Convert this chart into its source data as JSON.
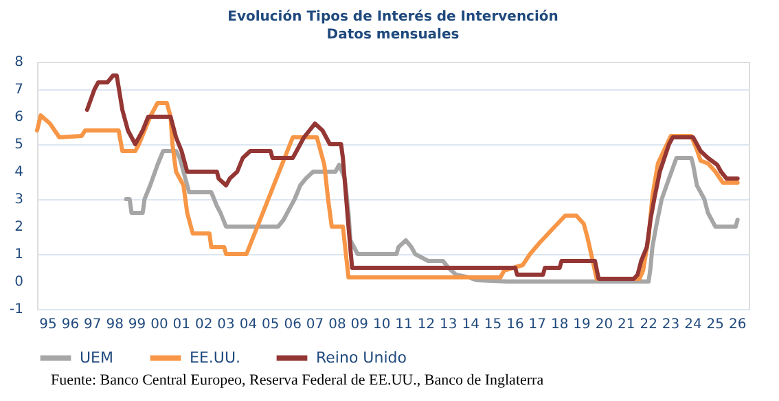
{
  "chart_data": {
    "type": "line",
    "title": "Evolución Tipos de Interés de Intervención",
    "subtitle": "Datos mensuales",
    "xlim": [
      "1995-01",
      "2027-01"
    ],
    "ylim": [
      -1,
      8
    ],
    "yticks": [
      -1,
      0,
      1,
      2,
      3,
      4,
      5,
      6,
      7,
      8
    ],
    "xticks": [
      {
        "value": "1995-07",
        "label": "95"
      },
      {
        "value": "1996-07",
        "label": "96"
      },
      {
        "value": "1997-07",
        "label": "97"
      },
      {
        "value": "1998-07",
        "label": "98"
      },
      {
        "value": "1999-07",
        "label": "99"
      },
      {
        "value": "2000-07",
        "label": "00"
      },
      {
        "value": "2001-07",
        "label": "01"
      },
      {
        "value": "2002-07",
        "label": "02"
      },
      {
        "value": "2003-07",
        "label": "03"
      },
      {
        "value": "2004-07",
        "label": "04"
      },
      {
        "value": "2005-07",
        "label": "05"
      },
      {
        "value": "2006-07",
        "label": "06"
      },
      {
        "value": "2007-07",
        "label": "07"
      },
      {
        "value": "2008-07",
        "label": "08"
      },
      {
        "value": "2009-07",
        "label": "09"
      },
      {
        "value": "2010-07",
        "label": "10"
      },
      {
        "value": "2011-07",
        "label": "11"
      },
      {
        "value": "2012-07",
        "label": "12"
      },
      {
        "value": "2013-07",
        "label": "13"
      },
      {
        "value": "2014-07",
        "label": "14"
      },
      {
        "value": "2015-07",
        "label": "15"
      },
      {
        "value": "2016-07",
        "label": "16"
      },
      {
        "value": "2017-07",
        "label": "17"
      },
      {
        "value": "2018-07",
        "label": "18"
      },
      {
        "value": "2019-07",
        "label": "19"
      },
      {
        "value": "2020-07",
        "label": "20"
      },
      {
        "value": "2021-07",
        "label": "21"
      },
      {
        "value": "2022-07",
        "label": "22"
      },
      {
        "value": "2023-07",
        "label": "23"
      },
      {
        "value": "2024-07",
        "label": "24"
      },
      {
        "value": "2025-07",
        "label": "25"
      },
      {
        "value": "2026-07",
        "label": "26"
      }
    ],
    "grid": "y",
    "legend": "bottom",
    "series": [
      {
        "name": "UEM",
        "color": "#a6a6a6",
        "x": [
          "1999-01",
          "1999-03",
          "1999-04",
          "1999-10",
          "1999-11",
          "2000-02",
          "2000-06",
          "2000-09",
          "2001-04",
          "2001-06",
          "2001-09",
          "2001-11",
          "2002-11",
          "2003-02",
          "2003-04",
          "2003-07",
          "2005-11",
          "2006-02",
          "2006-04",
          "2006-08",
          "2006-11",
          "2007-02",
          "2007-06",
          "2008-06",
          "2008-08",
          "2008-11",
          "2009-01",
          "2009-02",
          "2009-06",
          "2011-03",
          "2011-04",
          "2011-08",
          "2011-11",
          "2012-01",
          "2012-08",
          "2013-04",
          "2013-07",
          "2013-11",
          "2014-06",
          "2014-10",
          "2016-03",
          "2022-07",
          "2022-08",
          "2022-09",
          "2022-11",
          "2023-02",
          "2023-06",
          "2023-10",
          "2024-06",
          "2024-07",
          "2024-09",
          "2025-01",
          "2025-03",
          "2025-07",
          "2026-06",
          "2026-07"
        ],
        "values": [
          3.0,
          3.0,
          2.5,
          2.5,
          3.0,
          3.5,
          4.25,
          4.75,
          4.75,
          4.5,
          3.75,
          3.25,
          3.25,
          2.75,
          2.5,
          2.0,
          2.0,
          2.25,
          2.5,
          3.0,
          3.5,
          3.75,
          4.0,
          4.0,
          4.25,
          3.75,
          2.5,
          1.5,
          1.0,
          1.0,
          1.25,
          1.5,
          1.25,
          1.0,
          0.75,
          0.75,
          0.5,
          0.25,
          0.15,
          0.05,
          0.0,
          0.0,
          0.5,
          1.25,
          2.0,
          3.0,
          3.75,
          4.5,
          4.5,
          4.25,
          3.5,
          3.0,
          2.5,
          2.0,
          2.0,
          2.25
        ]
      },
      {
        "name": "EE.UU.",
        "color": "#f79646",
        "x": [
          "1995-01",
          "1995-03",
          "1995-08",
          "1996-01",
          "1997-01",
          "1997-03",
          "1998-09",
          "1998-11",
          "1999-06",
          "1999-08",
          "1999-11",
          "2000-02",
          "2000-06",
          "2000-11",
          "2001-01",
          "2001-02",
          "2001-04",
          "2001-08",
          "2001-10",
          "2002-01",
          "2002-10",
          "2002-11",
          "2003-06",
          "2003-07",
          "2004-06",
          "2006-07",
          "2007-08",
          "2007-10",
          "2007-12",
          "2008-02",
          "2008-04",
          "2008-10",
          "2009-01",
          "2015-11",
          "2016-01",
          "2016-11",
          "2017-03",
          "2017-08",
          "2018-03",
          "2018-10",
          "2019-04",
          "2019-08",
          "2019-10",
          "2020-03",
          "2022-02",
          "2022-04",
          "2022-07",
          "2022-09",
          "2022-12",
          "2023-07",
          "2024-06",
          "2024-09",
          "2024-11",
          "2025-03",
          "2025-07",
          "2025-11",
          "2026-07"
        ],
        "values": [
          5.5,
          6.05,
          5.75,
          5.25,
          5.3,
          5.5,
          5.5,
          4.75,
          4.75,
          5.0,
          5.5,
          6.0,
          6.5,
          6.5,
          6.0,
          5.0,
          4.0,
          3.5,
          2.5,
          1.75,
          1.75,
          1.25,
          1.25,
          1.0,
          1.0,
          5.25,
          5.25,
          4.75,
          4.25,
          3.0,
          2.0,
          2.0,
          0.15,
          0.15,
          0.4,
          0.6,
          1.0,
          1.4,
          1.9,
          2.4,
          2.4,
          2.1,
          1.6,
          0.1,
          0.1,
          0.4,
          1.6,
          3.1,
          4.3,
          5.3,
          5.3,
          4.8,
          4.4,
          4.3,
          4.0,
          3.6,
          3.6
        ]
      },
      {
        "name": "Reino Unido",
        "color": "#943634",
        "x": [
          "1997-04",
          "1997-08",
          "1997-10",
          "1998-03",
          "1998-06",
          "1998-08",
          "1998-11",
          "1999-02",
          "1999-06",
          "1999-10",
          "2000-01",
          "2001-01",
          "2001-04",
          "2001-07",
          "2001-10",
          "2003-02",
          "2003-03",
          "2003-07",
          "2003-09",
          "2004-01",
          "2004-04",
          "2004-08",
          "2005-07",
          "2005-08",
          "2006-07",
          "2006-09",
          "2007-01",
          "2007-04",
          "2007-07",
          "2007-11",
          "2008-03",
          "2008-09",
          "2008-10",
          "2009-01",
          "2009-03",
          "2016-07",
          "2016-08",
          "2017-10",
          "2017-11",
          "2018-07",
          "2018-08",
          "2020-02",
          "2020-04",
          "2021-11",
          "2022-01",
          "2022-03",
          "2022-06",
          "2022-08",
          "2022-10",
          "2023-01",
          "2023-06",
          "2023-08",
          "2024-07",
          "2024-09",
          "2024-11",
          "2025-03",
          "2025-08",
          "2025-10",
          "2026-01",
          "2026-07"
        ],
        "values": [
          6.25,
          7.0,
          7.25,
          7.25,
          7.5,
          7.5,
          6.25,
          5.5,
          5.0,
          5.5,
          6.0,
          6.0,
          5.25,
          4.75,
          4.0,
          4.0,
          3.75,
          3.5,
          3.75,
          4.0,
          4.5,
          4.75,
          4.75,
          4.5,
          4.5,
          4.75,
          5.25,
          5.5,
          5.75,
          5.5,
          5.0,
          5.0,
          4.5,
          2.0,
          0.5,
          0.5,
          0.25,
          0.25,
          0.5,
          0.5,
          0.75,
          0.75,
          0.1,
          0.1,
          0.25,
          0.75,
          1.25,
          2.25,
          3.0,
          4.0,
          5.0,
          5.25,
          5.25,
          5.0,
          4.75,
          4.5,
          4.25,
          4.0,
          3.75,
          3.75
        ]
      }
    ],
    "annotations": [
      "Fuente: Banco Central Europeo, Reserva Federal de EE.UU., Banco de Inglaterra"
    ]
  }
}
